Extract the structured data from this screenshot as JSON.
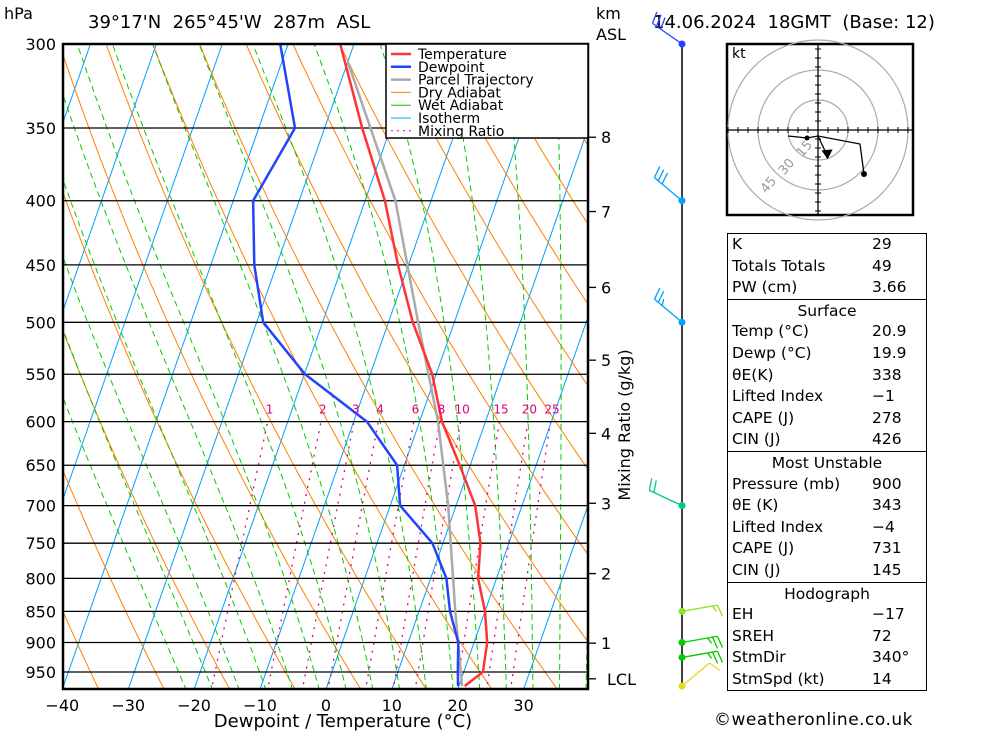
{
  "header": {
    "pressure_unit": "hPa",
    "location": "39°17'N  265°45'W  287m  ASL",
    "km_label": "km",
    "asl_label": "ASL",
    "datetime": "14.06.2024  18GMT  (Base: 12)"
  },
  "colors": {
    "temperature": "#ff3333",
    "dewpoint": "#2244ff",
    "parcel": "#aaaaaa",
    "dry_adiabat": "#ff8000",
    "wet_adiabat": "#00cc00",
    "isotherm": "#00a0ff",
    "mixing_ratio": "#e0007f"
  },
  "chart_data": {
    "type": "line",
    "subtype": "skew-T log-P",
    "title": "39°17'N  265°45'W  287m  ASL",
    "xlabel": "Dewpoint / Temperature (°C)",
    "ylabel": "hPa",
    "y2label": "Mixing Ratio (g/kg)",
    "xlim": [
      -40,
      40
    ],
    "ylim": [
      980,
      300
    ],
    "x_ticks": [
      -40,
      -30,
      -20,
      -10,
      0,
      10,
      20,
      30
    ],
    "x_tick_labels": [
      "−40",
      "−30",
      "−20",
      "−10",
      "0",
      "10",
      "20",
      "30"
    ],
    "pressure_ticks": [
      300,
      350,
      400,
      450,
      500,
      550,
      600,
      650,
      700,
      750,
      800,
      850,
      900,
      950
    ],
    "pressure_tick_labels": [
      "300",
      "350",
      "400",
      "450",
      "500",
      "550",
      "600",
      "650",
      "700",
      "750",
      "800",
      "850",
      "900",
      "950"
    ],
    "km_ticks": [
      {
        "label": "1",
        "p": 901
      },
      {
        "label": "2",
        "p": 793
      },
      {
        "label": "3",
        "p": 697
      },
      {
        "label": "4",
        "p": 613
      },
      {
        "label": "5",
        "p": 536
      },
      {
        "label": "6",
        "p": 469
      },
      {
        "label": "7",
        "p": 408
      },
      {
        "label": "8",
        "p": 356
      },
      {
        "label": "LCL",
        "p": 962
      }
    ],
    "mixing_ratio_labels": [
      "1",
      "2",
      "3",
      "4",
      "6",
      "8",
      "10",
      "15",
      "20",
      "25"
    ],
    "mixing_ratio_values": [
      1,
      2,
      3,
      4,
      6,
      8,
      10,
      15,
      20,
      25
    ],
    "legend": {
      "placement": "top-right",
      "entries": [
        "Temperature",
        "Dewpoint",
        "Parcel Trajectory",
        "Dry Adiabat",
        "Wet Adiabat",
        "Isotherm",
        "Mixing Ratio"
      ]
    },
    "series": [
      {
        "name": "Temperature",
        "p": [
          975,
          950,
          900,
          850,
          800,
          750,
          700,
          650,
          600,
          550,
          500,
          450,
          400,
          350,
          300
        ],
        "values": [
          20.9,
          22.9,
          22.0,
          20.0,
          17.2,
          15.7,
          12.9,
          8.4,
          3.4,
          -0.6,
          -6.3,
          -11.6,
          -17.0,
          -24.3,
          -32.1
        ]
      },
      {
        "name": "Dewpoint",
        "p": [
          975,
          950,
          900,
          850,
          800,
          750,
          700,
          650,
          600,
          550,
          500,
          450,
          400,
          350,
          300
        ],
        "values": [
          19.9,
          19.1,
          17.6,
          14.7,
          12.4,
          8.4,
          1.5,
          -1.1,
          -8.0,
          -19.9,
          -29.0,
          -33.4,
          -37.0,
          -34.5,
          -41.2
        ]
      },
      {
        "name": "Parcel Trajectory",
        "p": [
          975,
          850,
          700,
          600,
          500,
          400,
          310
        ],
        "values": [
          20.5,
          15.5,
          8.8,
          2.8,
          -5.5,
          -15.4,
          -30.0
        ]
      }
    ]
  },
  "winds": [
    {
      "p": 300,
      "dir": 305,
      "kt": 30,
      "color": "#2244ff"
    },
    {
      "p": 400,
      "dir": 310,
      "kt": 30,
      "color": "#00a0ff"
    },
    {
      "p": 500,
      "dir": 310,
      "kt": 25,
      "color": "#00a0ff"
    },
    {
      "p": 700,
      "dir": 295,
      "kt": 20,
      "color": "#00c890"
    },
    {
      "p": 850,
      "dir": 80,
      "kt": 15,
      "color": "#90e020"
    },
    {
      "p": 900,
      "dir": 80,
      "kt": 25,
      "color": "#00cc00"
    },
    {
      "p": 925,
      "dir": 80,
      "kt": 25,
      "color": "#00cc00"
    },
    {
      "p": 975,
      "dir": 50,
      "kt": 10,
      "color": "#e8d820"
    }
  ],
  "hodograph": {
    "unit_label": "kt",
    "rings": [
      15,
      30,
      45
    ],
    "ring_labels": [
      "15",
      "30",
      "45"
    ],
    "path_uv": [
      [
        -15,
        -3
      ],
      [
        -5.5,
        -4
      ],
      [
        0,
        -3
      ],
      [
        21,
        -7
      ],
      [
        23,
        -22
      ]
    ],
    "storm_motion_uv": [
      4.8,
      -13.2
    ]
  },
  "indices": {
    "general": [
      {
        "label": "K",
        "value": "29"
      },
      {
        "label": "Totals Totals",
        "value": "49"
      },
      {
        "label": "PW (cm)",
        "value": "3.66"
      }
    ],
    "surface": {
      "title": "Surface",
      "rows": [
        {
          "label": "Temp (°C)",
          "value": "20.9"
        },
        {
          "label": "Dewp (°C)",
          "value": "19.9"
        },
        {
          "label": "θE(K)",
          "value": "338"
        },
        {
          "label": "Lifted Index",
          "value": "−1"
        },
        {
          "label": "CAPE (J)",
          "value": "278"
        },
        {
          "label": "CIN (J)",
          "value": "426"
        }
      ]
    },
    "most_unstable": {
      "title": "Most Unstable",
      "rows": [
        {
          "label": "Pressure (mb)",
          "value": "900"
        },
        {
          "label": "θE (K)",
          "value": "343"
        },
        {
          "label": "Lifted Index",
          "value": "−4"
        },
        {
          "label": "CAPE (J)",
          "value": "731"
        },
        {
          "label": "CIN (J)",
          "value": "145"
        }
      ]
    },
    "hodograph": {
      "title": "Hodograph",
      "rows": [
        {
          "label": "EH",
          "value": "−17"
        },
        {
          "label": "SREH",
          "value": "72"
        },
        {
          "label": "StmDir",
          "value": "340°"
        },
        {
          "label": "StmSpd (kt)",
          "value": "14"
        }
      ]
    }
  },
  "footer": {
    "copyright": "©weatheronline.co.uk"
  }
}
